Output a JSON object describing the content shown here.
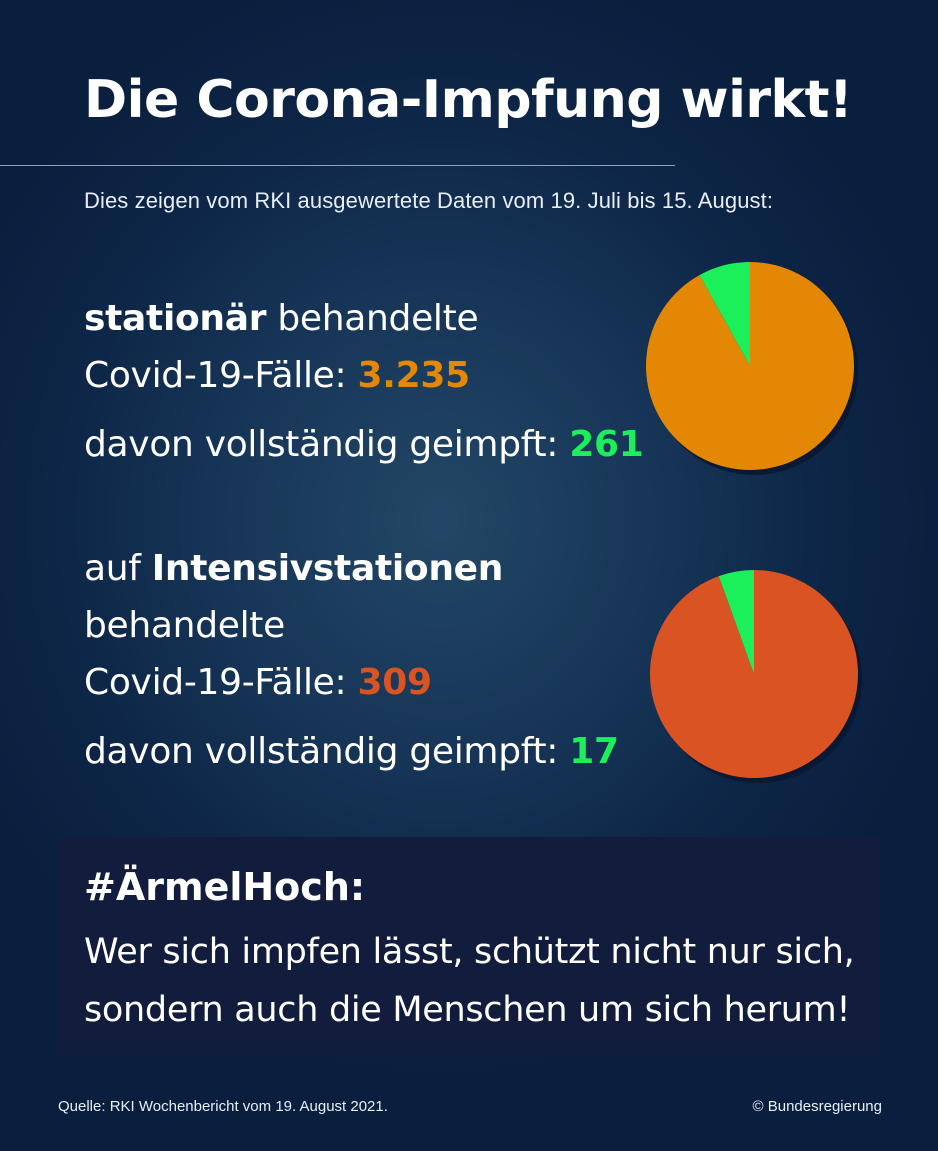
{
  "title": "Die Corona-Impfung wirkt!",
  "subtitle": "Dies zeigen vom RKI ausgewertete Daten vom 19. Juli bis 15. August:",
  "block1": {
    "bold": "stationär",
    "rest": " behandelte",
    "cases_label": "Covid-19-Fälle: ",
    "cases": "3.235",
    "vaccinated_label": "davon vollständig geimpft: ",
    "vaccinated": "261"
  },
  "block2": {
    "pre": "auf ",
    "bold": "Intensivstationen",
    "line2": "behandelte",
    "cases_label": "Covid-19-Fälle: ",
    "cases": "309",
    "vaccinated_label": "davon vollständig geimpft: ",
    "vaccinated": "17"
  },
  "chart_data": [
    {
      "type": "pie",
      "total": 3235,
      "slices": [
        {
          "value": 261,
          "color": "#1bf05b"
        },
        {
          "value": 2974,
          "color": "#e38704"
        }
      ]
    },
    {
      "type": "pie",
      "total": 309,
      "slices": [
        {
          "value": 17,
          "color": "#1bf05b"
        },
        {
          "value": 292,
          "color": "#d95422"
        }
      ]
    }
  ],
  "callout": {
    "hashtag": "#ÄrmelHoch:",
    "line1": "Wer sich impfen lässt, schützt nicht nur sich,",
    "line2": "sondern auch die Menschen um sich herum!"
  },
  "footer": {
    "source": "Quelle: RKI Wochenbericht vom 19. August 2021.",
    "copyright": "© Bundesregierung"
  }
}
